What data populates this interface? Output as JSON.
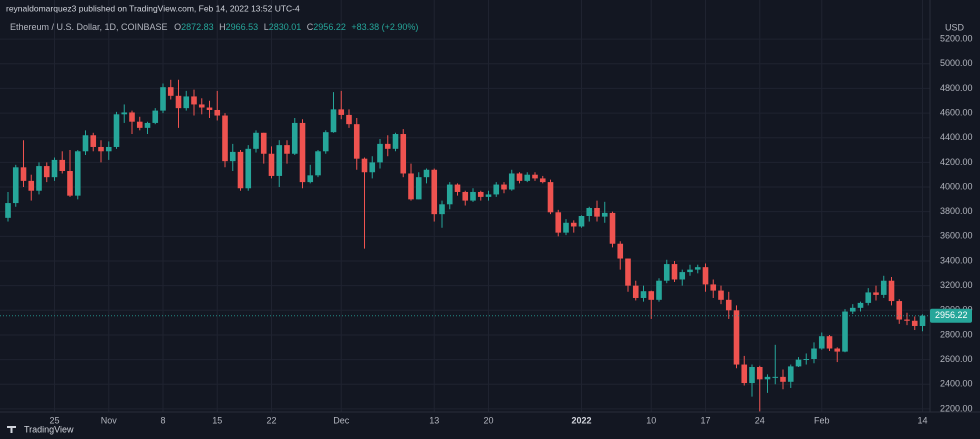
{
  "chart_data": {
    "type": "candlestick",
    "publisher_line": "reynaldomarquez3 published on TradingView.com, Feb 14, 2022 13:52 UTC-4",
    "symbol": "Ethereum / U.S. Dollar, 1D, COINBASE",
    "ohlc_labels": [
      "O",
      "H",
      "L",
      "C"
    ],
    "change": "+83.38 (+2.90%)",
    "currency": "USD",
    "footer_brand": "TradingView",
    "up_color": "#26a69a",
    "down_color": "#ef5350",
    "grid": true,
    "categories": [
      null,
      null,
      null,
      null,
      null,
      null,
      "25",
      null,
      null,
      null,
      null,
      null,
      null,
      "Nov",
      null,
      null,
      null,
      null,
      null,
      null,
      "8",
      null,
      null,
      null,
      null,
      null,
      null,
      "15",
      null,
      null,
      null,
      null,
      null,
      null,
      "22",
      null,
      null,
      null,
      null,
      null,
      null,
      null,
      null,
      "Dec",
      null,
      null,
      null,
      null,
      null,
      null,
      null,
      null,
      null,
      null,
      null,
      "13",
      null,
      null,
      null,
      null,
      null,
      null,
      "20",
      null,
      null,
      null,
      null,
      null,
      null,
      null,
      null,
      null,
      null,
      null,
      "2022",
      null,
      null,
      null,
      null,
      null,
      null,
      null,
      null,
      "10",
      null,
      null,
      null,
      null,
      null,
      null,
      "17",
      null,
      null,
      null,
      null,
      null,
      null,
      "24",
      null,
      null,
      null,
      null,
      null,
      null,
      null,
      "Feb",
      null,
      null,
      null,
      null,
      null,
      null,
      null,
      null,
      null,
      null,
      null,
      null,
      "14"
    ],
    "open": [
      3750,
      3870,
      4160,
      4050,
      3970,
      4170,
      4080,
      4220,
      4130,
      3930,
      4290,
      4420,
      4325,
      4290,
      4325,
      4590,
      4605,
      4530,
      4480,
      4520,
      4620,
      4810,
      4740,
      4640,
      4735,
      4670,
      4645,
      4625,
      4580,
      4210,
      4285,
      3990,
      4310,
      4440,
      4270,
      4090,
      4340,
      4270,
      4520,
      4040,
      4095,
      4290,
      4445,
      4630,
      4585,
      4510,
      4230,
      4120,
      4200,
      4350,
      4310,
      4430,
      4110,
      3900,
      4080,
      4140,
      3780,
      3860,
      4020,
      3960,
      3890,
      3960,
      3920,
      3940,
      4020,
      3980,
      4110,
      4050,
      4100,
      4070,
      4040,
      3795,
      3630,
      3710,
      3680,
      3765,
      3830,
      3760,
      3790,
      3540,
      3420,
      3200,
      3100,
      3155,
      3085,
      3240,
      3375,
      3250,
      3310,
      3330,
      3350,
      3210,
      3160,
      3085,
      3000,
      2560,
      2410,
      2540,
      2440,
      2460,
      2460,
      2420,
      2545,
      2600,
      2605,
      2690,
      2790,
      2690,
      2665,
      2990,
      3020,
      3060,
      3145,
      3125,
      3240,
      3075,
      2925,
      2915,
      2872.83
    ],
    "high": [
      3960,
      4180,
      4380,
      4100,
      4200,
      4200,
      4240,
      4290,
      4300,
      4300,
      4460,
      4440,
      4380,
      4370,
      4610,
      4670,
      4620,
      4570,
      4530,
      4640,
      4840,
      4870,
      4870,
      4780,
      4790,
      4720,
      4700,
      4780,
      4600,
      4350,
      4300,
      4340,
      4460,
      4440,
      4330,
      4380,
      4380,
      4560,
      4550,
      4180,
      4300,
      4460,
      4770,
      4780,
      4630,
      4560,
      4240,
      4250,
      4390,
      4420,
      4440,
      4470,
      4190,
      4120,
      4150,
      4150,
      3890,
      4040,
      4030,
      3970,
      3990,
      3970,
      3970,
      4040,
      4040,
      4140,
      4120,
      4120,
      4120,
      4090,
      4060,
      3815,
      3740,
      3730,
      3770,
      3840,
      3890,
      3880,
      3800,
      3560,
      3420,
      3240,
      3200,
      3160,
      3260,
      3410,
      3400,
      3330,
      3370,
      3370,
      3380,
      3250,
      3200,
      3150,
      3040,
      2630,
      2560,
      2550,
      2480,
      2720,
      2520,
      2560,
      2620,
      2650,
      2740,
      2820,
      2800,
      2700,
      3010,
      3050,
      3070,
      3180,
      3200,
      3280,
      3270,
      3090,
      2980,
      2950,
      2966.53
    ],
    "low": [
      3720,
      3840,
      4000,
      3890,
      3940,
      4040,
      4050,
      4110,
      3920,
      3900,
      4260,
      4290,
      4200,
      4220,
      4310,
      4520,
      4430,
      4460,
      4430,
      4510,
      4600,
      4710,
      4480,
      4620,
      4580,
      4590,
      4560,
      4540,
      4160,
      4130,
      3970,
      3970,
      4280,
      4190,
      4070,
      4000,
      4190,
      4260,
      3990,
      4030,
      4080,
      4270,
      4440,
      4550,
      4480,
      4140,
      3500,
      4070,
      4150,
      4250,
      4290,
      4080,
      3890,
      3900,
      4030,
      3720,
      3670,
      3820,
      3930,
      3850,
      3880,
      3890,
      3890,
      3920,
      3950,
      3970,
      4030,
      4040,
      4050,
      4030,
      3780,
      3600,
      3610,
      3630,
      3670,
      3720,
      3720,
      3710,
      3510,
      3330,
      3150,
      3080,
      3070,
      2930,
      3070,
      3220,
      3230,
      3200,
      3280,
      3300,
      3150,
      3100,
      3050,
      2930,
      2530,
      2390,
      2300,
      2180,
      2330,
      2400,
      2360,
      2370,
      2540,
      2560,
      2570,
      2680,
      2670,
      2580,
      2660,
      2970,
      2990,
      3040,
      3080,
      3100,
      3040,
      2890,
      2880,
      2840,
      2830.01
    ],
    "close": [
      3870,
      4160,
      4050,
      3970,
      4170,
      4080,
      4220,
      4130,
      3930,
      4290,
      4420,
      4325,
      4290,
      4325,
      4590,
      4605,
      4530,
      4480,
      4520,
      4620,
      4810,
      4740,
      4640,
      4735,
      4670,
      4645,
      4625,
      4580,
      4210,
      4285,
      3990,
      4310,
      4440,
      4270,
      4090,
      4340,
      4270,
      4520,
      4040,
      4095,
      4290,
      4445,
      4630,
      4585,
      4510,
      4230,
      4120,
      4200,
      4350,
      4310,
      4430,
      4110,
      3900,
      4080,
      4140,
      3780,
      3860,
      4020,
      3960,
      3890,
      3960,
      3920,
      3940,
      4020,
      3980,
      4110,
      4050,
      4100,
      4070,
      4040,
      3795,
      3630,
      3710,
      3680,
      3765,
      3830,
      3760,
      3790,
      3540,
      3420,
      3200,
      3100,
      3155,
      3085,
      3240,
      3375,
      3250,
      3310,
      3330,
      3350,
      3210,
      3160,
      3085,
      3000,
      2560,
      2410,
      2540,
      2440,
      2460,
      2460,
      2420,
      2545,
      2600,
      2605,
      2690,
      2790,
      2690,
      2665,
      2990,
      3020,
      3060,
      3145,
      3125,
      3240,
      3075,
      2925,
      2915,
      2872.83,
      2956.22
    ],
    "ylim": [
      2175,
      5355
    ],
    "yticks": [
      {
        "value": 2200,
        "label": "2200.00"
      },
      {
        "value": 2400,
        "label": "2400.00"
      },
      {
        "value": 2600,
        "label": "2600.00"
      },
      {
        "value": 2800,
        "label": "2800.00"
      },
      {
        "value": 3000,
        "label": "3000.00"
      },
      {
        "value": 3200,
        "label": "3200.00"
      },
      {
        "value": 3400,
        "label": "3400.00"
      },
      {
        "value": 3600,
        "label": "3600.00"
      },
      {
        "value": 3800,
        "label": "3800.00"
      },
      {
        "value": 4000,
        "label": "4000.00"
      },
      {
        "value": 4200,
        "label": "4200.00"
      },
      {
        "value": 4400,
        "label": "4400.00"
      },
      {
        "value": 4600,
        "label": "4600.00"
      },
      {
        "value": 4800,
        "label": "4800.00"
      },
      {
        "value": 5000,
        "label": "5000.00"
      },
      {
        "value": 5200,
        "label": "5200.00"
      }
    ]
  }
}
